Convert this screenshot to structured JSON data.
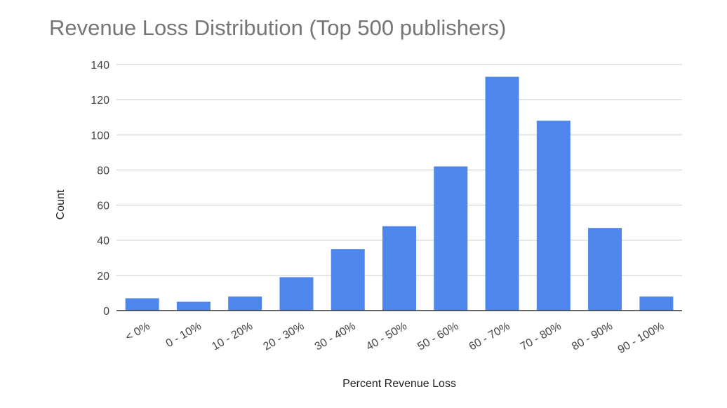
{
  "chart_data": {
    "type": "bar",
    "title": "Revenue Loss Distribution (Top 500 publishers)",
    "xlabel": "Percent Revenue Loss",
    "ylabel": "Count",
    "categories": [
      "< 0%",
      "0 - 10%",
      "10 - 20%",
      "20 - 30%",
      "30 - 40%",
      "40 - 50%",
      "50 - 60%",
      "60 - 70%",
      "70 - 80%",
      "80 - 90%",
      "90 - 100%"
    ],
    "values": [
      7,
      5,
      8,
      19,
      35,
      48,
      82,
      133,
      108,
      47,
      8
    ],
    "ylim": [
      0,
      140
    ],
    "yticks": [
      0,
      20,
      40,
      60,
      80,
      100,
      120,
      140
    ],
    "grid": true,
    "legend": "none",
    "bar_color": "#4f86ec",
    "grid_color": "#cccccc",
    "axis_color": "#333333"
  }
}
